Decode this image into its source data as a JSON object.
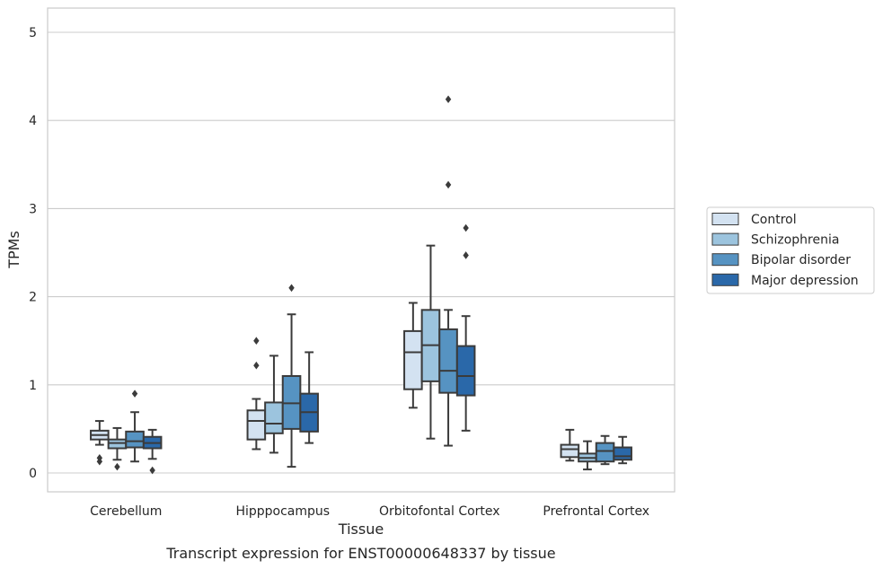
{
  "caption": "Transcript expression for ENST00000648337 by tissue",
  "chart_data": {
    "type": "box",
    "xlabel": "Tissue",
    "ylabel": "TPMs",
    "ylim": [
      -0.2,
      5.28
    ],
    "yticks": [
      0,
      1,
      2,
      3,
      4,
      5
    ],
    "grid": "horizontal",
    "legend_position": "right",
    "categories": [
      "Cerebellum",
      "Hipppocampus",
      "Orbitofontal Cortex",
      "Prefrontal Cortex"
    ],
    "series": [
      {
        "name": "Control",
        "color": "#d3e2f1",
        "boxes": [
          {
            "whislo": 0.32,
            "q1": 0.38,
            "med": 0.43,
            "q3": 0.48,
            "whishi": 0.59,
            "fliers": [
              0.13,
              0.17
            ]
          },
          {
            "whislo": 0.27,
            "q1": 0.38,
            "med": 0.59,
            "q3": 0.71,
            "whishi": 0.84,
            "fliers": [
              1.22,
              1.5
            ]
          },
          {
            "whislo": 0.74,
            "q1": 0.95,
            "med": 1.37,
            "q3": 1.61,
            "whishi": 1.93,
            "fliers": []
          },
          {
            "whislo": 0.14,
            "q1": 0.18,
            "med": 0.27,
            "q3": 0.32,
            "whishi": 0.49,
            "fliers": []
          }
        ]
      },
      {
        "name": "Schizophrenia",
        "color": "#9cc4de",
        "boxes": [
          {
            "whislo": 0.15,
            "q1": 0.28,
            "med": 0.34,
            "q3": 0.38,
            "whishi": 0.51,
            "fliers": [
              0.07
            ]
          },
          {
            "whislo": 0.23,
            "q1": 0.45,
            "med": 0.56,
            "q3": 0.8,
            "whishi": 1.33,
            "fliers": []
          },
          {
            "whislo": 0.39,
            "q1": 1.04,
            "med": 1.45,
            "q3": 1.85,
            "whishi": 2.58,
            "fliers": []
          },
          {
            "whislo": 0.04,
            "q1": 0.13,
            "med": 0.17,
            "q3": 0.22,
            "whishi": 0.36,
            "fliers": []
          }
        ]
      },
      {
        "name": "Bipolar disorder",
        "color": "#5693c2",
        "boxes": [
          {
            "whislo": 0.13,
            "q1": 0.29,
            "med": 0.36,
            "q3": 0.47,
            "whishi": 0.69,
            "fliers": [
              0.9
            ]
          },
          {
            "whislo": 0.07,
            "q1": 0.5,
            "med": 0.79,
            "q3": 1.1,
            "whishi": 1.8,
            "fliers": [
              2.1
            ]
          },
          {
            "whislo": 0.31,
            "q1": 0.91,
            "med": 1.16,
            "q3": 1.63,
            "whishi": 1.85,
            "fliers": [
              3.27,
              4.24
            ]
          },
          {
            "whislo": 0.1,
            "q1": 0.13,
            "med": 0.25,
            "q3": 0.34,
            "whishi": 0.42,
            "fliers": []
          }
        ]
      },
      {
        "name": "Major depression",
        "color": "#2a68a9",
        "boxes": [
          {
            "whislo": 0.16,
            "q1": 0.28,
            "med": 0.34,
            "q3": 0.41,
            "whishi": 0.49,
            "fliers": [
              0.03
            ]
          },
          {
            "whislo": 0.34,
            "q1": 0.47,
            "med": 0.69,
            "q3": 0.9,
            "whishi": 1.37,
            "fliers": []
          },
          {
            "whislo": 0.48,
            "q1": 0.88,
            "med": 1.1,
            "q3": 1.44,
            "whishi": 1.78,
            "fliers": [
              2.47,
              2.78
            ]
          },
          {
            "whislo": 0.11,
            "q1": 0.15,
            "med": 0.19,
            "q3": 0.29,
            "whishi": 0.41,
            "fliers": []
          }
        ]
      }
    ]
  }
}
